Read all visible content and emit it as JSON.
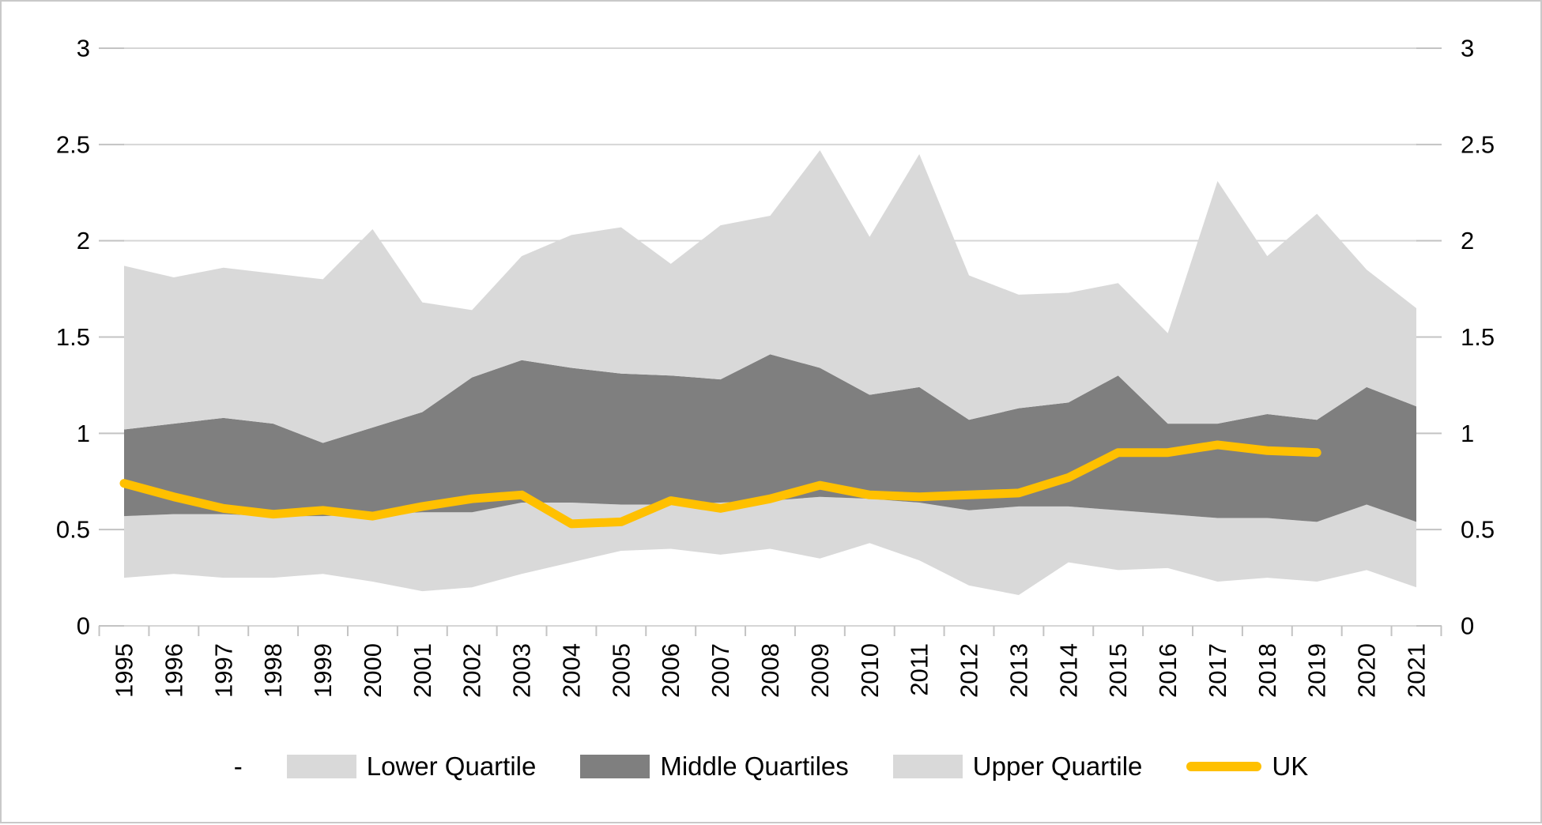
{
  "page": {
    "background": "#ffffff",
    "border_color": "#c9c9c9",
    "title": ""
  },
  "legend": {
    "items": [
      {
        "label": "-",
        "swatch": "none",
        "color": ""
      },
      {
        "label": "Lower Quartile",
        "swatch": "area",
        "color": "#d9d9d9"
      },
      {
        "label": "Middle Quartiles",
        "swatch": "area",
        "color": "#7f7f7f"
      },
      {
        "label": "Upper Quartile",
        "swatch": "area",
        "color": "#d9d9d9"
      },
      {
        "label": "UK",
        "swatch": "line",
        "color": "#ffc000"
      }
    ]
  },
  "chart_data": {
    "type": "area",
    "title": "",
    "xlabel": "",
    "ylabel": "",
    "ylim": [
      0,
      3
    ],
    "grid": true,
    "dual_y_axis": true,
    "legend_position": "bottom",
    "y_tick_values": [
      0,
      0.5,
      1,
      1.5,
      2,
      2.5,
      3
    ],
    "y_tick_labels": [
      "0",
      "0.5",
      "1",
      "1.5",
      "2",
      "2.5",
      "3"
    ],
    "categories": [
      "1995",
      "1996",
      "1997",
      "1998",
      "1999",
      "2000",
      "2001",
      "2002",
      "2003",
      "2004",
      "2005",
      "2006",
      "2007",
      "2008",
      "2009",
      "2010",
      "2011",
      "2012",
      "2013",
      "2014",
      "2015",
      "2016",
      "2017",
      "2018",
      "2019",
      "2020",
      "2021"
    ],
    "quartile_boundaries": {
      "minimum": [
        0.25,
        0.27,
        0.25,
        0.25,
        0.27,
        0.23,
        0.18,
        0.2,
        0.27,
        0.33,
        0.39,
        0.4,
        0.37,
        0.4,
        0.35,
        0.43,
        0.34,
        0.21,
        0.16,
        0.33,
        0.29,
        0.3,
        0.23,
        0.25,
        0.23,
        0.29,
        0.2
      ],
      "lower_quartile": [
        0.57,
        0.58,
        0.58,
        0.57,
        0.57,
        0.58,
        0.59,
        0.59,
        0.64,
        0.64,
        0.63,
        0.63,
        0.64,
        0.65,
        0.67,
        0.66,
        0.64,
        0.6,
        0.62,
        0.62,
        0.6,
        0.58,
        0.56,
        0.56,
        0.54,
        0.63,
        0.54
      ],
      "upper_quartile": [
        1.02,
        1.05,
        1.08,
        1.05,
        0.95,
        1.03,
        1.11,
        1.29,
        1.38,
        1.34,
        1.31,
        1.3,
        1.28,
        1.41,
        1.34,
        1.2,
        1.24,
        1.07,
        1.13,
        1.16,
        1.3,
        1.05,
        1.05,
        1.1,
        1.07,
        1.24,
        1.14
      ],
      "maximum": [
        1.87,
        1.81,
        1.86,
        1.83,
        1.8,
        2.06,
        1.68,
        1.64,
        1.92,
        2.03,
        2.07,
        1.88,
        2.08,
        2.13,
        2.47,
        2.02,
        2.45,
        1.82,
        1.72,
        1.73,
        1.78,
        1.52,
        2.31,
        1.92,
        2.14,
        1.85,
        1.65
      ]
    },
    "series": [
      {
        "name": "-",
        "role": "hidden-base"
      },
      {
        "name": "Lower Quartile",
        "role": "stacked-band",
        "from": "minimum",
        "to": "lower_quartile",
        "color": "#d9d9d9"
      },
      {
        "name": "Middle Quartiles",
        "role": "stacked-band",
        "from": "lower_quartile",
        "to": "upper_quartile",
        "color": "#7f7f7f"
      },
      {
        "name": "Upper Quartile",
        "role": "stacked-band",
        "from": "upper_quartile",
        "to": "maximum",
        "color": "#d9d9d9"
      },
      {
        "name": "UK",
        "role": "line",
        "color": "#ffc000",
        "stroke_width": 11,
        "values": [
          0.74,
          0.67,
          0.61,
          0.58,
          0.6,
          0.57,
          0.62,
          0.66,
          0.68,
          0.53,
          0.54,
          0.65,
          0.61,
          0.66,
          0.73,
          0.68,
          0.67,
          0.68,
          0.69,
          0.77,
          0.9,
          0.9,
          0.94,
          0.91,
          0.9
        ],
        "last_category": "2019"
      }
    ],
    "colors": {
      "band_light": "#d9d9d9",
      "band_dark": "#7f7f7f",
      "uk_line": "#ffc000",
      "gridline": "#d6d6d6",
      "tick": "#c3c3c3",
      "text": "#000000"
    }
  }
}
